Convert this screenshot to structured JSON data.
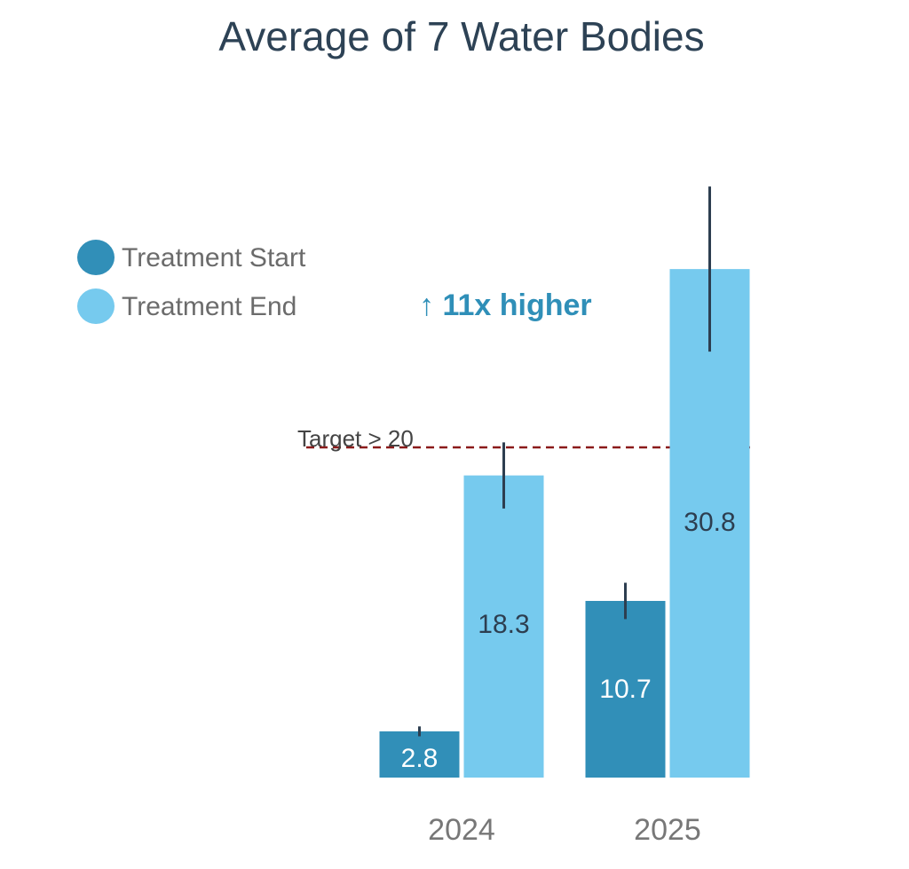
{
  "chart_data": {
    "type": "bar",
    "title": "Average of 7 Water Bodies",
    "categories": [
      "2024",
      "2025"
    ],
    "series": [
      {
        "name": "Treatment Start",
        "color": "#318fb8",
        "values": [
          2.8,
          10.7
        ],
        "errors": [
          0.3,
          1.1
        ]
      },
      {
        "name": "Treatment End",
        "color": "#76caee",
        "values": [
          18.3,
          30.8
        ],
        "errors": [
          2.0,
          5.0
        ]
      }
    ],
    "ylim": [
      0,
      36
    ],
    "reference_line": {
      "value": 20,
      "label": "Target > 20",
      "color": "#8b1a1a"
    },
    "annotation": "↑ 11x higher",
    "legend": "upper left"
  }
}
